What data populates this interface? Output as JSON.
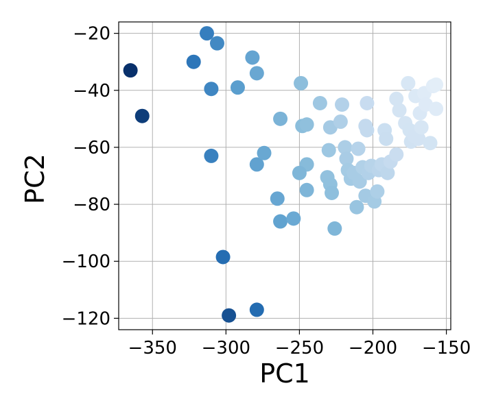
{
  "chart_data": {
    "type": "scatter",
    "title": "",
    "xlabel": "PC1",
    "ylabel": "PC2",
    "xlim": [
      -373,
      -147
    ],
    "ylim": [
      -124,
      -16
    ],
    "xticks": [
      -350,
      -300,
      -250,
      -200,
      -150
    ],
    "yticks": [
      -120,
      -100,
      -80,
      -60,
      -40,
      -20
    ],
    "xtick_labels": [
      "−350",
      "−300",
      "−250",
      "−200",
      "−150"
    ],
    "ytick_labels": [
      "−120",
      "−100",
      "−80",
      "−60",
      "−40",
      "−20"
    ],
    "grid": true,
    "legend": "none",
    "colormap": "Blues",
    "color_light": "#e6eff8",
    "color_dark": "#08306b",
    "points": [
      {
        "x": -365,
        "y": -33
      },
      {
        "x": -357,
        "y": -49
      },
      {
        "x": -322,
        "y": -30
      },
      {
        "x": -313,
        "y": -20
      },
      {
        "x": -306,
        "y": -23.5
      },
      {
        "x": -310,
        "y": -39.5
      },
      {
        "x": -292,
        "y": -39
      },
      {
        "x": -282,
        "y": -28.5
      },
      {
        "x": -279,
        "y": -34
      },
      {
        "x": -310,
        "y": -63
      },
      {
        "x": -279,
        "y": -66
      },
      {
        "x": -274,
        "y": -62
      },
      {
        "x": -265,
        "y": -78
      },
      {
        "x": -263,
        "y": -86
      },
      {
        "x": -254,
        "y": -85
      },
      {
        "x": -302,
        "y": -98.5
      },
      {
        "x": -298,
        "y": -119
      },
      {
        "x": -279,
        "y": -117
      },
      {
        "x": -263,
        "y": -50
      },
      {
        "x": -249,
        "y": -37.5
      },
      {
        "x": -248,
        "y": -52.5
      },
      {
        "x": -245,
        "y": -52
      },
      {
        "x": -245,
        "y": -66
      },
      {
        "x": -245,
        "y": -75
      },
      {
        "x": -250,
        "y": -69
      },
      {
        "x": -236,
        "y": -44.5
      },
      {
        "x": -229,
        "y": -53
      },
      {
        "x": -230,
        "y": -61
      },
      {
        "x": -231,
        "y": -70.5
      },
      {
        "x": -229,
        "y": -73
      },
      {
        "x": -228,
        "y": -76
      },
      {
        "x": -226,
        "y": -88.5
      },
      {
        "x": -221,
        "y": -45
      },
      {
        "x": -222,
        "y": -51
      },
      {
        "x": -219,
        "y": -60
      },
      {
        "x": -218,
        "y": -64
      },
      {
        "x": -217,
        "y": -68
      },
      {
        "x": -215,
        "y": -71
      },
      {
        "x": -213,
        "y": -69
      },
      {
        "x": -211,
        "y": -81
      },
      {
        "x": -210,
        "y": -60.5
      },
      {
        "x": -209,
        "y": -72
      },
      {
        "x": -207,
        "y": -67
      },
      {
        "x": -205,
        "y": -52.5
      },
      {
        "x": -204,
        "y": -54
      },
      {
        "x": -204,
        "y": -44.5
      },
      {
        "x": -205,
        "y": -77
      },
      {
        "x": -203,
        "y": -69
      },
      {
        "x": -201,
        "y": -66.5
      },
      {
        "x": -199,
        "y": -79
      },
      {
        "x": -197,
        "y": -75.5
      },
      {
        "x": -196,
        "y": -68
      },
      {
        "x": -194,
        "y": -66
      },
      {
        "x": -192,
        "y": -54
      },
      {
        "x": -191,
        "y": -57
      },
      {
        "x": -190,
        "y": -69
      },
      {
        "x": -188,
        "y": -65
      },
      {
        "x": -184,
        "y": -62.5
      },
      {
        "x": -184,
        "y": -43
      },
      {
        "x": -182,
        "y": -47
      },
      {
        "x": -178,
        "y": -51.5
      },
      {
        "x": -176,
        "y": -37.5
      },
      {
        "x": -175,
        "y": -54
      },
      {
        "x": -174,
        "y": -58
      },
      {
        "x": -172,
        "y": -56
      },
      {
        "x": -171,
        "y": -42
      },
      {
        "x": -169,
        "y": -57
      },
      {
        "x": -168,
        "y": -48
      },
      {
        "x": -167,
        "y": -53
      },
      {
        "x": -165,
        "y": -41
      },
      {
        "x": -164,
        "y": -45
      },
      {
        "x": -161,
        "y": -58.5
      },
      {
        "x": -159,
        "y": -38.5
      },
      {
        "x": -157,
        "y": -38
      },
      {
        "x": -157,
        "y": -46.5
      }
    ]
  }
}
